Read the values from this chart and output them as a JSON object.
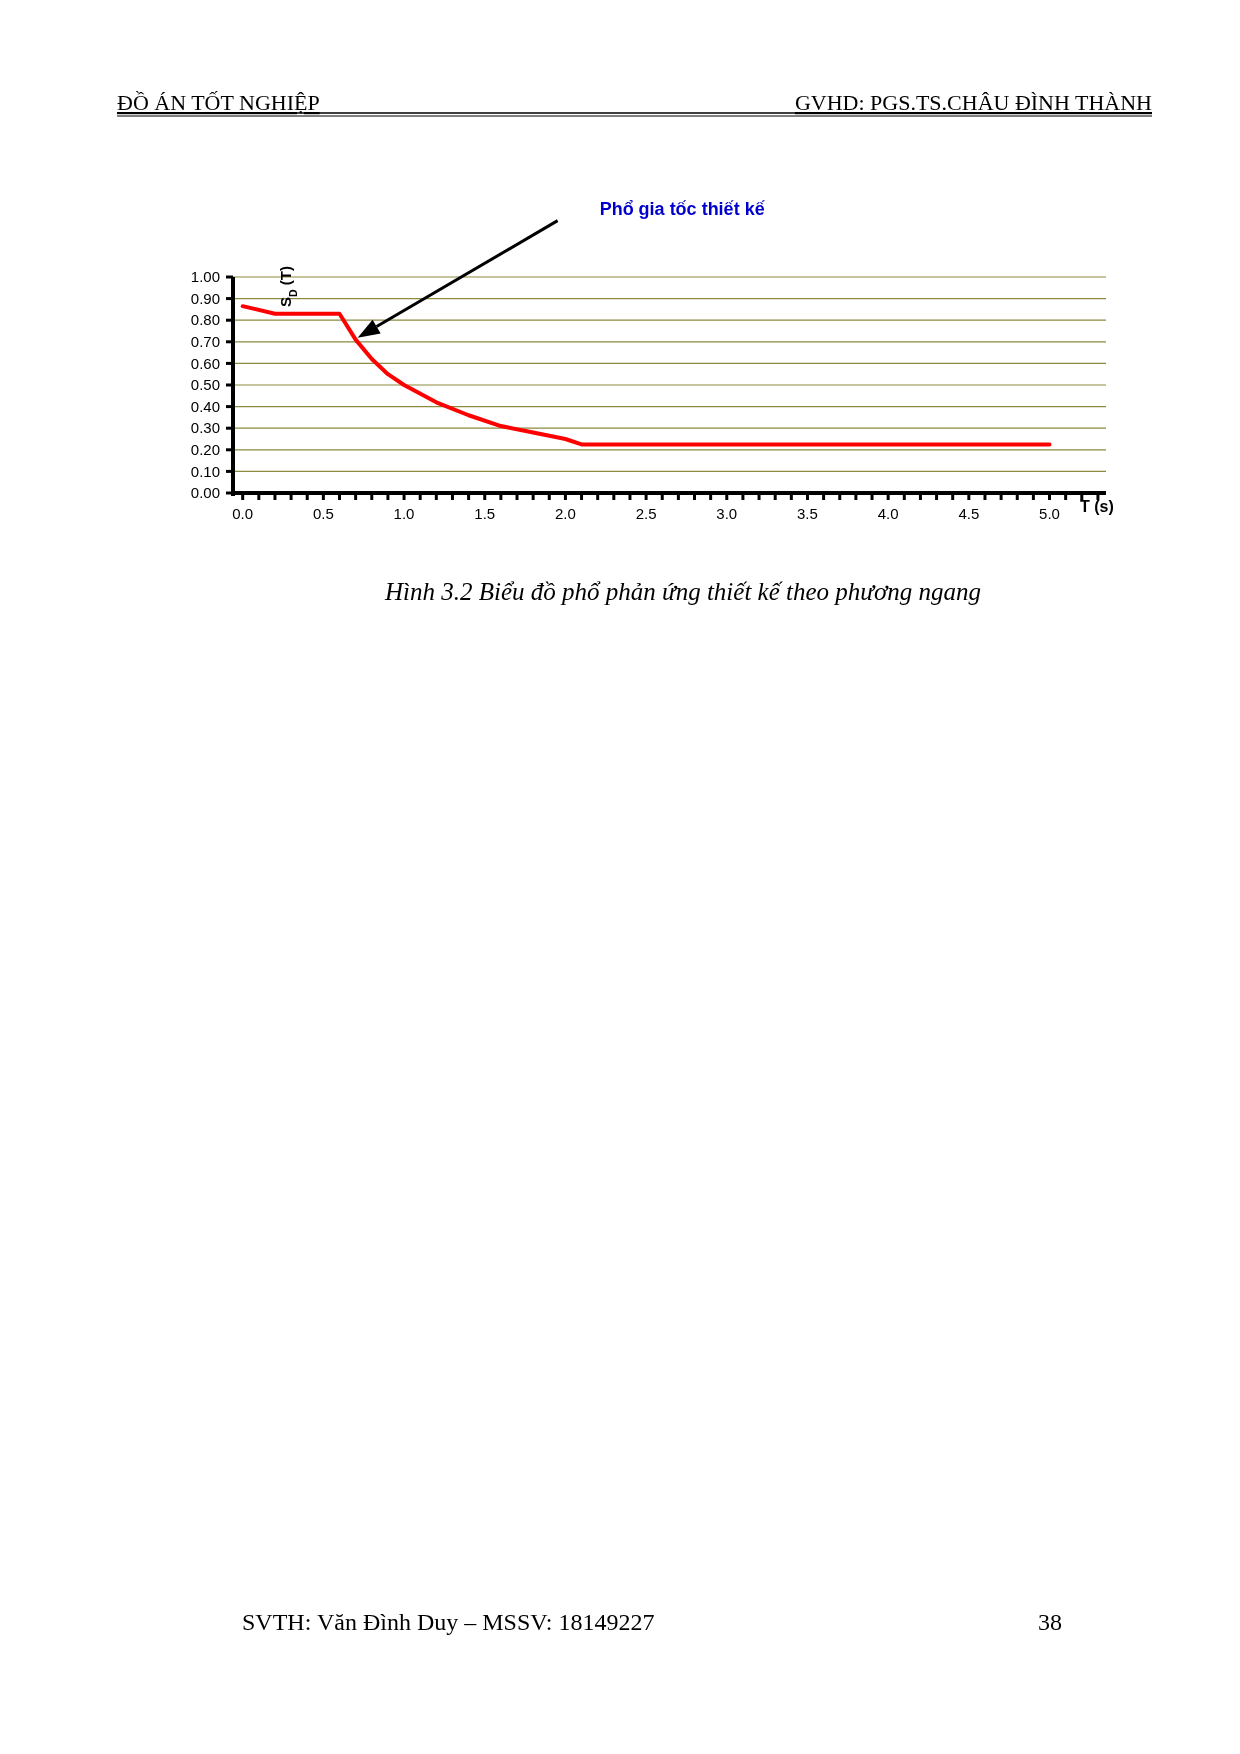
{
  "chart_data": {
    "type": "line",
    "title": "Hình 3.2 Biểu đồ phổ phản ứng thiết kế theo phương ngang",
    "xlabel": "T (s)",
    "ylabel": "S$_{D}$ (T)",
    "x": [
      0,
      0.2,
      0.6,
      0.7,
      0.8,
      0.9,
      1.0,
      1.2,
      1.4,
      1.6,
      1.8,
      2.0,
      2.1,
      5.0
    ],
    "series": [
      {
        "color": "#ff0000",
        "values": [
          0.865,
          0.83,
          0.83,
          0.71,
          0.62,
          0.55,
          0.5,
          0.42,
          0.36,
          0.31,
          0.28,
          0.25,
          0.225,
          0.225
        ]
      }
    ],
    "xlim": [
      -0.06,
      5.35
    ],
    "ylim": [
      0,
      1
    ],
    "xticks": [
      {
        "value": 0,
        "label": "0.0"
      },
      0.5,
      {
        "value": 1,
        "label": "1.0"
      },
      1.5,
      {
        "value": 2,
        "label": "2.0"
      },
      2.5,
      {
        "value": 3,
        "label": "3.0"
      },
      3.5,
      {
        "value": 4,
        "label": "4.0"
      },
      4.5,
      {
        "value": 5,
        "label": "5.0"
      }
    ],
    "yticks": [
      {
        "value": 0,
        "label": "0.00"
      },
      {
        "value": 0.1,
        "label": "0.10"
      },
      {
        "value": 0.2,
        "label": "0.20"
      },
      {
        "value": 0.3,
        "label": "0.30"
      },
      {
        "value": 0.4,
        "label": "0.40"
      },
      {
        "value": 0.5,
        "label": "0.50"
      },
      {
        "value": 0.6,
        "label": "0.60"
      },
      {
        "value": 0.7,
        "label": "0.70"
      },
      {
        "value": 0.8,
        "label": "0.80"
      },
      {
        "value": 0.9,
        "label": "0.90"
      },
      {
        "value": 1,
        "label": "1.00"
      }
    ],
    "grid": "y",
    "marker": "none",
    "line_style": "solid",
    "annotations": [
      "Phổ gia tốc thiết kế",
      "ĐỒ ÁN TỐT NGHIỆP",
      "GVHD: PGS.TS.CHÂU ĐÌNH THÀNH",
      "SVTH: Văn Đình Duy – MSSV: 18149227",
      "38"
    ]
  }
}
